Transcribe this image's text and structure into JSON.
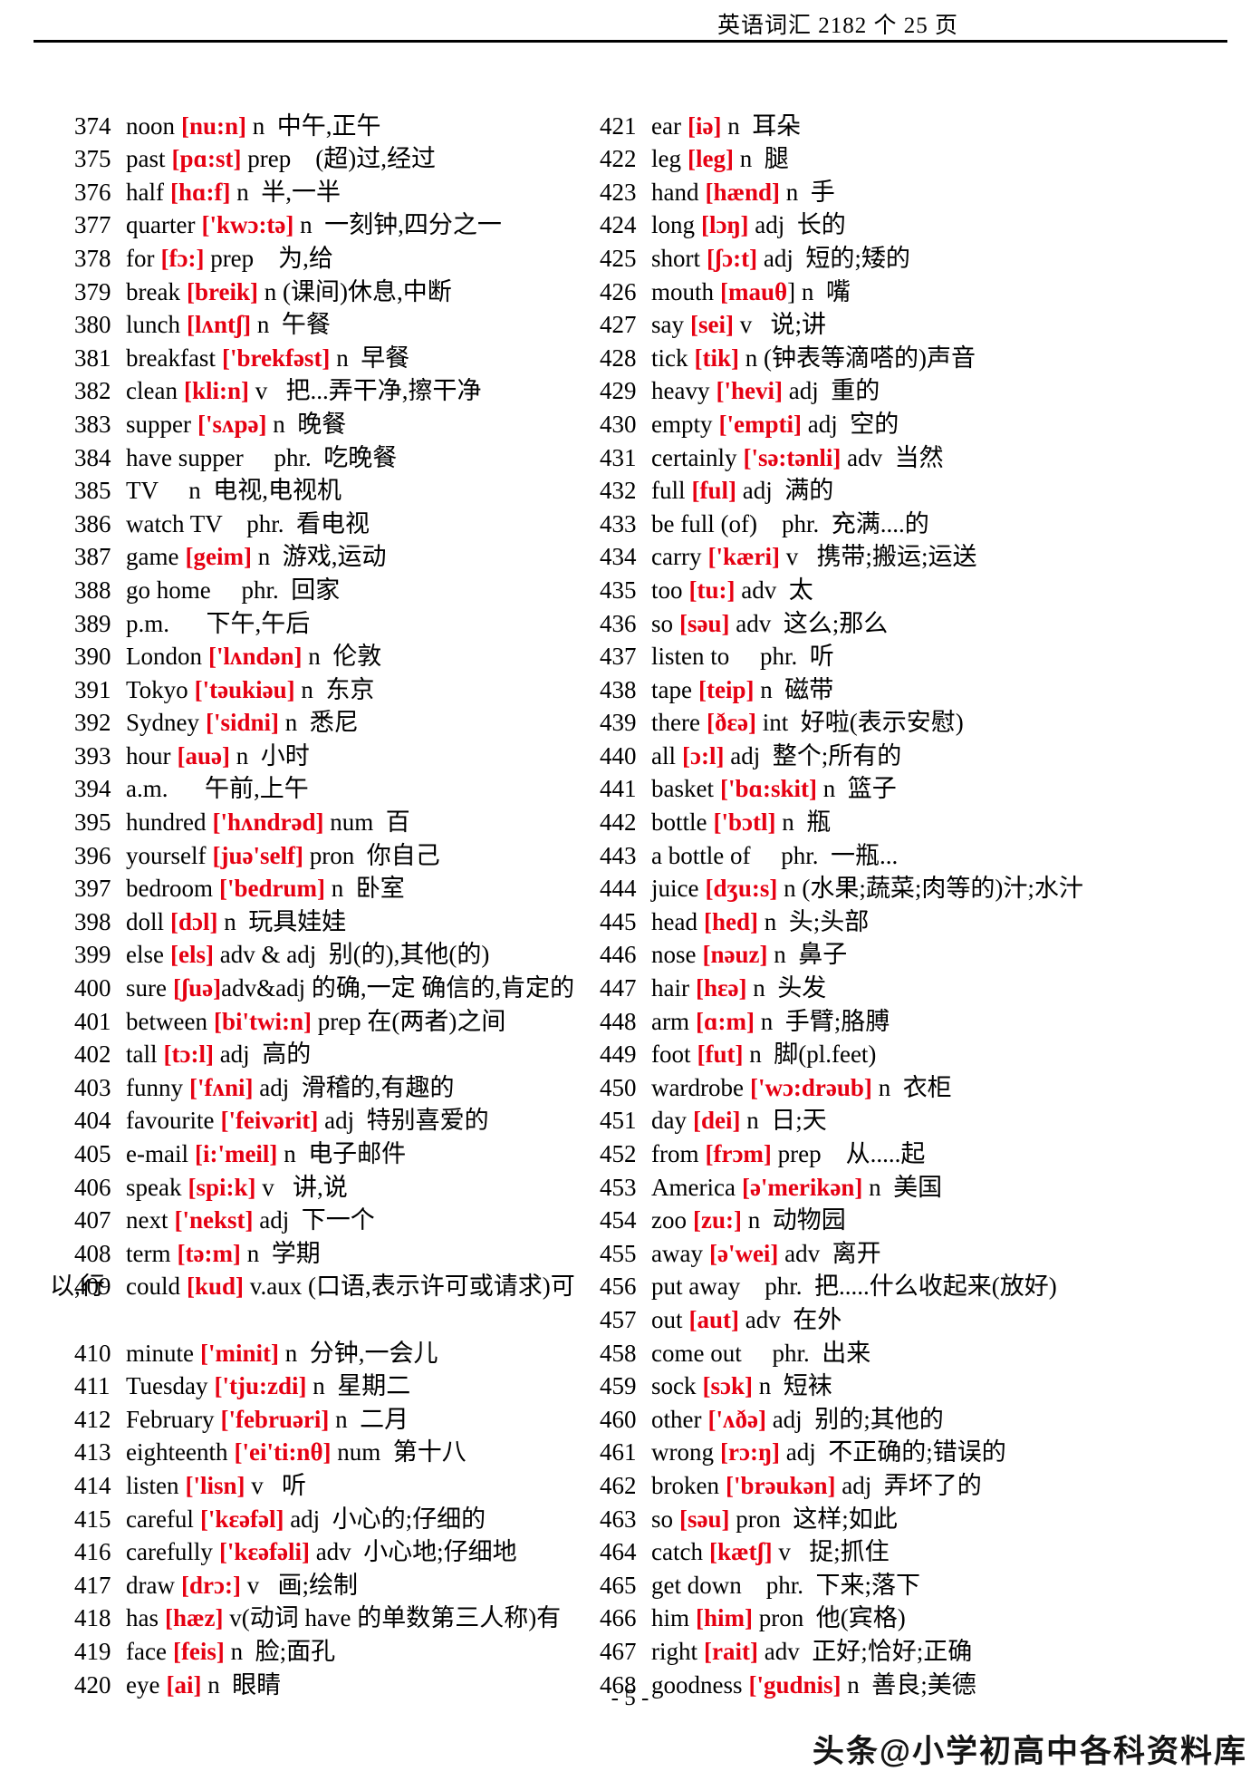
{
  "header": {
    "title": "英语词汇 2182 个  25 页"
  },
  "footer": {
    "page_number": "- 5 -"
  },
  "watermark": {
    "text": "头条@小学初高中各科资料库"
  },
  "colors": {
    "phonetic_red": "#e60012",
    "text_black": "#000000"
  },
  "word_list": {
    "left_column": [
      {
        "num": "374",
        "word": "noon",
        "phon": "[nu:n]",
        "rest": " n  中午,正午"
      },
      {
        "num": "375",
        "word": "past",
        "phon": "[pɑ:st]",
        "rest": " prep    (超)过,经过"
      },
      {
        "num": "376",
        "word": "half",
        "phon": "[hɑ:f]",
        "rest": " n  半,一半"
      },
      {
        "num": "377",
        "word": "quarter",
        "phon": "['kwɔ:tə]",
        "rest": " n  一刻钟,四分之一"
      },
      {
        "num": "378",
        "word": "for",
        "phon": "[fɔ:]",
        "rest": " prep    为,给"
      },
      {
        "num": "379",
        "word": "break",
        "phon": "[breik]",
        "rest": " n (课间)休息,中断"
      },
      {
        "num": "380",
        "word": "lunch",
        "phon": "[lʌntʃ]",
        "rest": " n  午餐"
      },
      {
        "num": "381",
        "word": "breakfast",
        "phon": "['brekfəst]",
        "rest": " n  早餐"
      },
      {
        "num": "382",
        "word": "clean",
        "phon": "[kli:n]",
        "rest": " v   把...弄干净,擦干净"
      },
      {
        "num": "383",
        "word": "supper",
        "phon": "['sʌpə]",
        "rest": " n  晚餐"
      },
      {
        "num": "384",
        "word": "have supper",
        "phon": "",
        "rest": "     phr.  吃晚餐"
      },
      {
        "num": "385",
        "word": "TV",
        "phon": "",
        "rest": "     n  电视,电视机"
      },
      {
        "num": "386",
        "word": "watch TV",
        "phon": "",
        "rest": "    phr.  看电视"
      },
      {
        "num": "387",
        "word": "game",
        "phon": "[geim]",
        "rest": " n  游戏,运动"
      },
      {
        "num": "388",
        "word": "go home",
        "phon": "",
        "rest": "     phr.  回家"
      },
      {
        "num": "389",
        "word": "p.m.",
        "phon": "",
        "rest": "      下午,午后"
      },
      {
        "num": "390",
        "word": "London",
        "phon": "['lʌndən]",
        "rest": " n  伦敦"
      },
      {
        "num": "391",
        "word": "Tokyo",
        "phon": "['təukiəu]",
        "rest": " n  东京"
      },
      {
        "num": "392",
        "word": "Sydney",
        "phon": "['sidni]",
        "rest": " n  悉尼"
      },
      {
        "num": "393",
        "word": "hour",
        "phon": "[auə]",
        "rest": " n  小时"
      },
      {
        "num": "394",
        "word": "a.m.",
        "phon": "",
        "rest": "      午前,上午"
      },
      {
        "num": "395",
        "word": "hundred",
        "phon": "['hʌndrəd]",
        "rest": " num  百"
      },
      {
        "num": "396",
        "word": "yourself",
        "phon": "[juə'self]",
        "rest": " pron  你自己"
      },
      {
        "num": "397",
        "word": "bedroom",
        "phon": "['bedrum]",
        "rest": " n  卧室"
      },
      {
        "num": "398",
        "word": "doll",
        "phon": "[dɔl]",
        "rest": " n  玩具娃娃"
      },
      {
        "num": "399",
        "word": "else",
        "phon": "[els]",
        "rest": " adv & adj  别(的),其他(的)"
      },
      {
        "num": "400",
        "word": "sure",
        "phon": "[ʃuə]",
        "rest": "adv&adj 的确,一定 确信的,肯定的"
      },
      {
        "num": "401",
        "word": "between",
        "phon": "[bi'twi:n]",
        "rest": " prep 在(两者)之间"
      },
      {
        "num": "402",
        "word": "tall",
        "phon": "[tɔ:l]",
        "rest": " adj  高的"
      },
      {
        "num": "403",
        "word": "funny",
        "phon": "['fʌni]",
        "rest": " adj  滑稽的,有趣的"
      },
      {
        "num": "404",
        "word": "favourite",
        "phon": "['feivərit]",
        "rest": " adj  特别喜爱的"
      },
      {
        "num": "405",
        "word": "e-mail",
        "phon": "[i:'meil]",
        "rest": " n  电子邮件"
      },
      {
        "num": "406",
        "word": "speak",
        "phon": "[spi:k]",
        "rest": " v   讲,说"
      },
      {
        "num": "407",
        "word": "next",
        "phon": "['nekst]",
        "rest": " adj  下一个"
      },
      {
        "num": "408",
        "word": "term",
        "phon": "[tə:m]",
        "rest": " n  学期"
      },
      {
        "num": "409",
        "word": "could",
        "phon": "[kud]",
        "rest": " v.aux (口语,表示许可或请求)可",
        "cont": "以,行"
      },
      {
        "num": "410",
        "word": "minute",
        "phon": "['minit]",
        "rest": " n  分钟,一会儿"
      },
      {
        "num": "411",
        "word": "Tuesday",
        "phon": "['tju:zdi]",
        "rest": " n  星期二"
      },
      {
        "num": "412",
        "word": "February",
        "phon": "['februəri]",
        "rest": " n  二月"
      },
      {
        "num": "413",
        "word": "eighteenth",
        "phon": "['ei'ti:nθ]",
        "rest": " num  第十八"
      },
      {
        "num": "414",
        "word": "listen",
        "phon": "['lisn]",
        "rest": " v   听"
      },
      {
        "num": "415",
        "word": "careful",
        "phon": "['kɛəfəl]",
        "rest": " adj  小心的;仔细的"
      },
      {
        "num": "416",
        "word": "carefully",
        "phon": "['kɛəfəli]",
        "rest": " adv  小心地;仔细地"
      },
      {
        "num": "417",
        "word": "draw",
        "phon": "[drɔ:]",
        "rest": " v   画;绘制"
      },
      {
        "num": "418",
        "word": "has",
        "phon": "[hæz]",
        "rest": " v(动词 have 的单数第三人称)有"
      },
      {
        "num": "419",
        "word": "face",
        "phon": "[feis]",
        "rest": " n  脸;面孔"
      },
      {
        "num": "420",
        "word": "eye",
        "phon": "[ai]",
        "rest": " n  眼睛"
      }
    ],
    "right_column": [
      {
        "num": "421",
        "word": "ear",
        "phon": "[iə]",
        "rest": " n  耳朵"
      },
      {
        "num": "422",
        "word": "leg",
        "phon": "[leg]",
        "rest": " n  腿"
      },
      {
        "num": "423",
        "word": "hand",
        "phon": "[hænd]",
        "rest": " n  手"
      },
      {
        "num": "424",
        "word": "long",
        "phon": "[lɔŋ]",
        "rest": " adj  长的"
      },
      {
        "num": "425",
        "word": "short",
        "phon": "[ʃɔ:t]",
        "rest": " adj  短的;矮的"
      },
      {
        "num": "426",
        "word": "mouth",
        "phon": "[mauθ",
        "rest": "] n  嘴"
      },
      {
        "num": "427",
        "word": "say",
        "phon": "[sei]",
        "rest": " v   说;讲"
      },
      {
        "num": "428",
        "word": "tick",
        "phon": "[tik]",
        "rest": " n (钟表等滴嗒的)声音"
      },
      {
        "num": "429",
        "word": "heavy",
        "phon": "['hevi]",
        "rest": " adj  重的"
      },
      {
        "num": "430",
        "word": "empty",
        "phon": "['empti]",
        "rest": " adj  空的"
      },
      {
        "num": "431",
        "word": "certainly",
        "phon": "['sə:tənli]",
        "rest": " adv  当然"
      },
      {
        "num": "432",
        "word": "full",
        "phon": "[ful]",
        "rest": " adj  满的"
      },
      {
        "num": "433",
        "word": "be full (of)",
        "phon": "",
        "rest": "    phr.  充满....的"
      },
      {
        "num": "434",
        "word": "carry",
        "phon": "['kæri]",
        "rest": " v   携带;搬运;运送"
      },
      {
        "num": "435",
        "word": "too",
        "phon": "[tu:]",
        "rest": " adv  太"
      },
      {
        "num": "436",
        "word": "so",
        "phon": "[səu]",
        "rest": " adv  这么;那么"
      },
      {
        "num": "437",
        "word": "listen to",
        "phon": "",
        "rest": "     phr.  听"
      },
      {
        "num": "438",
        "word": "tape",
        "phon": "[teip]",
        "rest": " n  磁带"
      },
      {
        "num": "439",
        "word": "there",
        "phon": "[ðɛə]",
        "rest": " int  好啦(表示安慰)"
      },
      {
        "num": "440",
        "word": "all",
        "phon": "[ɔ:l]",
        "rest": " adj  整个;所有的"
      },
      {
        "num": "441",
        "word": "basket",
        "phon": "['bɑ:skit]",
        "rest": " n  篮子"
      },
      {
        "num": "442",
        "word": "bottle",
        "phon": "['bɔtl]",
        "rest": " n  瓶"
      },
      {
        "num": "443",
        "word": "a bottle of",
        "phon": "",
        "rest": "     phr.  一瓶..."
      },
      {
        "num": "444",
        "word": "juice",
        "phon": "[dʒu:s]",
        "rest": " n (水果;蔬菜;肉等的)汁;水汁"
      },
      {
        "num": "445",
        "word": "head",
        "phon": "[hed]",
        "rest": " n  头;头部"
      },
      {
        "num": "446",
        "word": "nose",
        "phon": "[nəuz]",
        "rest": " n  鼻子"
      },
      {
        "num": "447",
        "word": "hair",
        "phon": "[hɛə]",
        "rest": " n  头发"
      },
      {
        "num": "448",
        "word": "arm",
        "phon": "[ɑ:m]",
        "rest": " n  手臂;胳膊"
      },
      {
        "num": "449",
        "word": "foot",
        "phon": "[fut]",
        "rest": " n  脚(pl.feet)"
      },
      {
        "num": "450",
        "word": "wardrobe",
        "phon": "['wɔ:drəub]",
        "rest": " n  衣柜"
      },
      {
        "num": "451",
        "word": "day",
        "phon": "[dei]",
        "rest": " n  日;天"
      },
      {
        "num": "452",
        "word": "from",
        "phon": "[frɔm]",
        "rest": " prep    从.....起"
      },
      {
        "num": "453",
        "word": "America",
        "phon": "[ə'merikən]",
        "rest": " n  美国"
      },
      {
        "num": "454",
        "word": "zoo",
        "phon": "[zu:]",
        "rest": " n  动物园"
      },
      {
        "num": "455",
        "word": "away",
        "phon": "[ə'wei]",
        "rest": " adv  离开"
      },
      {
        "num": "456",
        "word": "put away",
        "phon": "",
        "rest": "    phr.  把.....什么收起来(放好)"
      },
      {
        "num": "457",
        "word": "out",
        "phon": "[aut]",
        "rest": " adv  在外"
      },
      {
        "num": "458",
        "word": "come out",
        "phon": "",
        "rest": "     phr.  出来"
      },
      {
        "num": "459",
        "word": "sock",
        "phon": "[sɔk]",
        "rest": " n  短袜"
      },
      {
        "num": "460",
        "word": "other",
        "phon": "['ʌðə]",
        "rest": " adj  别的;其他的"
      },
      {
        "num": "461",
        "word": "wrong",
        "phon": "[rɔ:ŋ]",
        "rest": " adj  不正确的;错误的"
      },
      {
        "num": "462",
        "word": "broken",
        "phon": "['brəukən]",
        "rest": " adj  弄坏了的"
      },
      {
        "num": "463",
        "word": "so",
        "phon": "[səu]",
        "rest": " pron  这样;如此"
      },
      {
        "num": "464",
        "word": "catch",
        "phon": "[kætʃ]",
        "rest": " v   捉;抓住"
      },
      {
        "num": "465",
        "word": "get down",
        "phon": "",
        "rest": "    phr.  下来;落下"
      },
      {
        "num": "466",
        "word": "him",
        "phon": "[him]",
        "rest": " pron  他(宾格)"
      },
      {
        "num": "467",
        "word": "right",
        "phon": "[rait]",
        "rest": " adv  正好;恰好;正确"
      },
      {
        "num": "468",
        "word": "goodness",
        "phon": "['gudnis]",
        "rest": " n  善良;美德"
      }
    ]
  }
}
